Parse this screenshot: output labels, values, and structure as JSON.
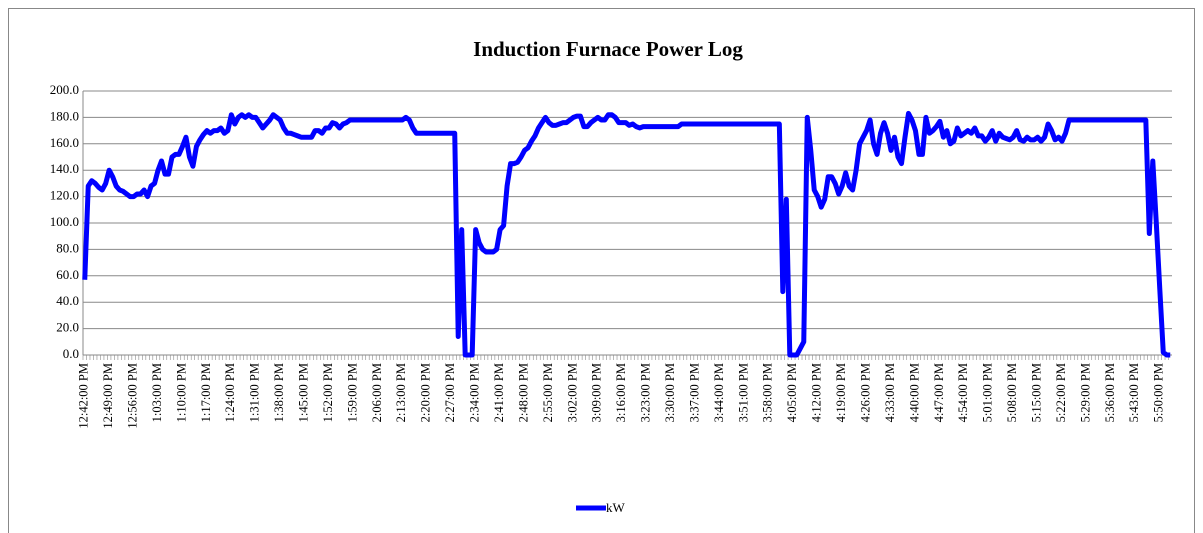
{
  "chart_data": {
    "type": "line",
    "title": "Induction Furnace Power Log",
    "categories": [
      "12:42:00 PM",
      null,
      null,
      null,
      null,
      null,
      null,
      "12:49:00 PM",
      null,
      null,
      null,
      null,
      null,
      null,
      "12:56:00 PM",
      null,
      null,
      null,
      null,
      null,
      null,
      "1:03:00 PM",
      null,
      null,
      null,
      null,
      null,
      null,
      "1:10:00 PM",
      null,
      null,
      null,
      null,
      null,
      null,
      "1:17:00 PM",
      null,
      null,
      null,
      null,
      null,
      null,
      "1:24:00 PM",
      null,
      null,
      null,
      null,
      null,
      null,
      "1:31:00 PM",
      null,
      null,
      null,
      null,
      null,
      null,
      "1:38:00 PM",
      null,
      null,
      null,
      null,
      null,
      null,
      "1:45:00 PM",
      null,
      null,
      null,
      null,
      null,
      null,
      "1:52:00 PM",
      null,
      null,
      null,
      null,
      null,
      null,
      "1:59:00 PM",
      null,
      null,
      null,
      null,
      null,
      null,
      "2:06:00 PM",
      null,
      null,
      null,
      null,
      null,
      null,
      "2:13:00 PM",
      null,
      null,
      null,
      null,
      null,
      null,
      "2:20:00 PM",
      null,
      null,
      null,
      null,
      null,
      null,
      "2:27:00 PM",
      null,
      null,
      null,
      null,
      null,
      null,
      "2:34:00 PM",
      null,
      null,
      null,
      null,
      null,
      null,
      "2:41:00 PM",
      null,
      null,
      null,
      null,
      null,
      null,
      "2:48:00 PM",
      null,
      null,
      null,
      null,
      null,
      null,
      "2:55:00 PM",
      null,
      null,
      null,
      null,
      null,
      null,
      "3:02:00 PM",
      null,
      null,
      null,
      null,
      null,
      null,
      "3:09:00 PM",
      null,
      null,
      null,
      null,
      null,
      null,
      "3:16:00 PM",
      null,
      null,
      null,
      null,
      null,
      null,
      "3:23:00 PM",
      null,
      null,
      null,
      null,
      null,
      null,
      "3:30:00 PM",
      null,
      null,
      null,
      null,
      null,
      null,
      "3:37:00 PM",
      null,
      null,
      null,
      null,
      null,
      null,
      "3:44:00 PM",
      null,
      null,
      null,
      null,
      null,
      null,
      "3:51:00 PM",
      null,
      null,
      null,
      null,
      null,
      null,
      "3:58:00 PM",
      null,
      null,
      null,
      null,
      null,
      null,
      "4:05:00 PM",
      null,
      null,
      null,
      null,
      null,
      null,
      "4:12:00 PM",
      null,
      null,
      null,
      null,
      null,
      null,
      "4:19:00 PM",
      null,
      null,
      null,
      null,
      null,
      null,
      "4:26:00 PM",
      null,
      null,
      null,
      null,
      null,
      null,
      "4:33:00 PM",
      null,
      null,
      null,
      null,
      null,
      null,
      "4:40:00 PM",
      null,
      null,
      null,
      null,
      null,
      null,
      "4:47:00 PM",
      null,
      null,
      null,
      null,
      null,
      null,
      "4:54:00 PM",
      null,
      null,
      null,
      null,
      null,
      null,
      "5:01:00 PM",
      null,
      null,
      null,
      null,
      null,
      null,
      "5:08:00 PM",
      null,
      null,
      null,
      null,
      null,
      null,
      "5:15:00 PM",
      null,
      null,
      null,
      null,
      null,
      null,
      "5:22:00 PM",
      null,
      null,
      null,
      null,
      null,
      null,
      "5:29:00 PM",
      null,
      null,
      null,
      null,
      null,
      null,
      "5:36:00 PM",
      null,
      null,
      null,
      null,
      null,
      null,
      "5:43:00 PM",
      null,
      null,
      null,
      null,
      null,
      null,
      "5:50:00 PM",
      null,
      null,
      null
    ],
    "series": [
      {
        "name": "kW",
        "color": "#0000ff",
        "values": [
          57,
          128,
          132,
          130,
          127,
          125,
          130,
          140,
          135,
          128,
          125,
          124,
          122,
          120,
          120,
          122,
          122,
          125,
          120,
          128,
          130,
          140,
          147,
          137,
          137,
          150,
          152,
          152,
          158,
          165,
          150,
          143,
          158,
          163,
          167,
          170,
          168,
          170,
          170,
          172,
          168,
          170,
          182,
          175,
          180,
          182,
          180,
          182,
          180,
          180,
          176,
          172,
          175,
          178,
          182,
          180,
          178,
          172,
          168,
          168,
          167,
          166,
          165,
          165,
          165,
          165,
          170,
          170,
          168,
          172,
          172,
          176,
          175,
          172,
          175,
          176,
          178,
          178,
          178,
          178,
          178,
          178,
          178,
          178,
          178,
          178,
          178,
          178,
          178,
          178,
          178,
          178,
          180,
          178,
          172,
          168,
          168,
          168,
          168,
          168,
          168,
          168,
          168,
          168,
          168,
          168,
          168,
          14,
          95,
          0,
          0,
          0,
          95,
          85,
          80,
          78,
          78,
          78,
          80,
          95,
          98,
          128,
          145,
          145,
          146,
          150,
          155,
          157,
          162,
          166,
          172,
          176,
          180,
          176,
          174,
          174,
          175,
          176,
          176,
          178,
          180,
          181,
          181,
          173,
          173,
          176,
          178,
          180,
          178,
          178,
          182,
          182,
          180,
          176,
          176,
          176,
          174,
          175,
          173,
          172,
          173,
          173,
          173,
          173,
          173,
          173,
          173,
          173,
          173,
          173,
          173,
          175,
          175,
          175,
          175,
          175,
          175,
          175,
          175,
          175,
          175,
          175,
          175,
          175,
          175,
          175,
          175,
          175,
          175,
          175,
          175,
          175,
          175,
          175,
          175,
          175,
          175,
          175,
          175,
          175,
          48,
          118,
          0,
          0,
          0,
          5,
          10,
          180,
          155,
          125,
          120,
          112,
          118,
          135,
          135,
          130,
          122,
          128,
          138,
          128,
          125,
          140,
          160,
          165,
          170,
          178,
          160,
          152,
          168,
          176,
          168,
          155,
          165,
          150,
          145,
          165,
          183,
          178,
          170,
          152,
          152,
          180,
          168,
          170,
          173,
          177,
          165,
          170,
          160,
          162,
          172,
          166,
          168,
          170,
          168,
          172,
          166,
          166,
          162,
          165,
          170,
          162,
          168,
          165,
          164,
          163,
          165,
          170,
          163,
          162,
          165,
          163,
          163,
          165,
          162,
          165,
          175,
          170,
          163,
          165,
          162,
          168,
          178,
          178,
          178,
          178,
          178,
          178,
          178,
          178,
          178,
          178,
          178,
          178,
          178,
          178,
          178,
          178,
          178,
          178,
          178,
          178,
          178,
          178,
          178,
          92,
          147,
          100,
          50,
          2,
          0,
          0
        ]
      }
    ],
    "ylim": [
      0,
      200
    ],
    "yticks": [
      {
        "value": 0,
        "label": "0.0"
      },
      {
        "value": 20,
        "label": "20.0"
      },
      {
        "value": 40,
        "label": "40.0"
      },
      {
        "value": 60,
        "label": "60.0"
      },
      {
        "value": 80,
        "label": "80.0"
      },
      {
        "value": 100,
        "label": "100.0"
      },
      {
        "value": 120,
        "label": "120.0"
      },
      {
        "value": 140,
        "label": "140.0"
      },
      {
        "value": 160,
        "label": "160.0"
      },
      {
        "value": 180,
        "label": "180.0"
      },
      {
        "value": 200,
        "label": "200.0"
      }
    ],
    "grid": true,
    "legend": "bottom"
  }
}
